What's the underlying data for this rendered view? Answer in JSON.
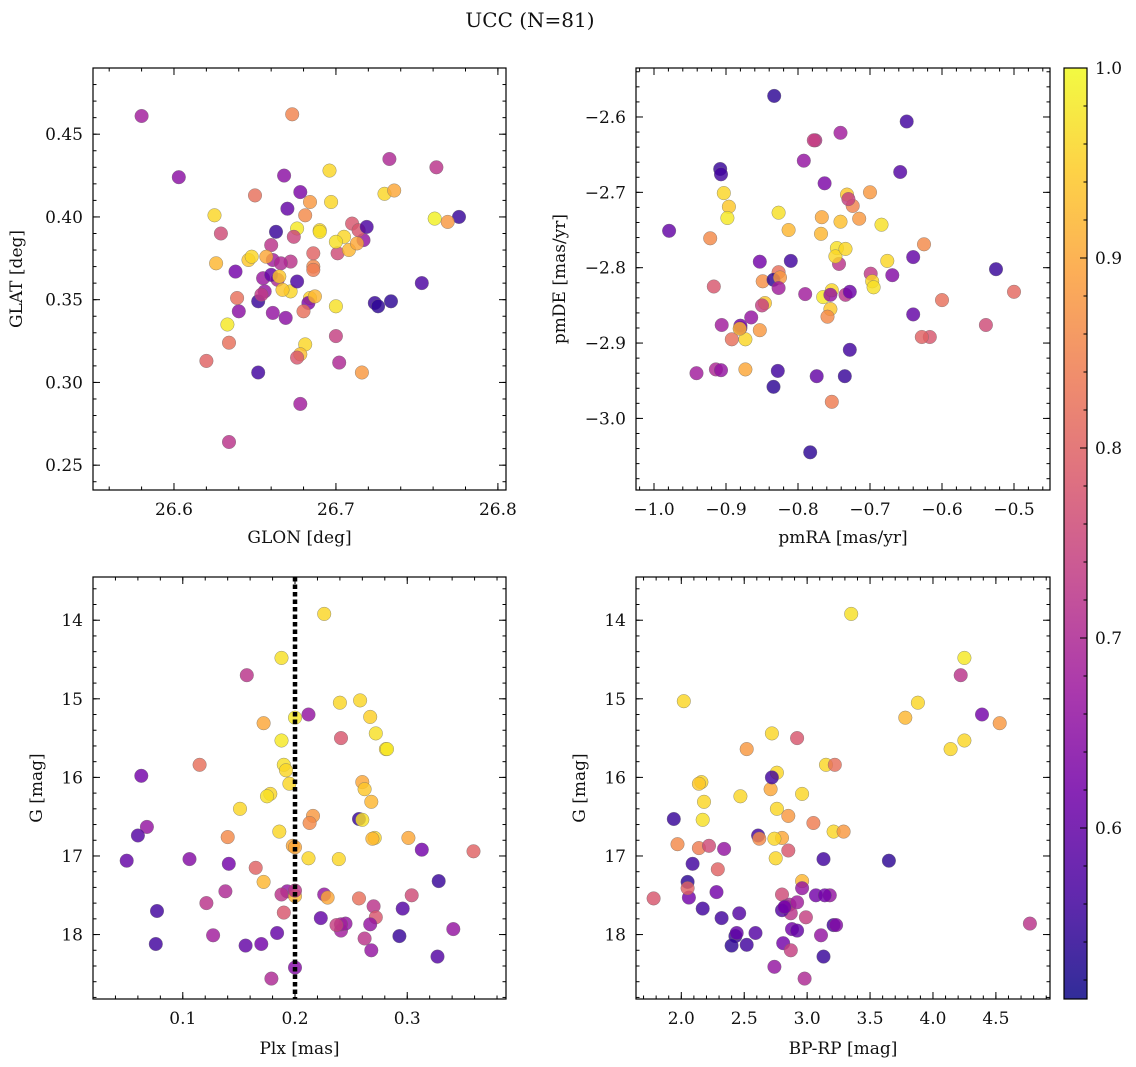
{
  "figure": {
    "title": "UCC (N=81)"
  },
  "colormap": {
    "name": "plasma",
    "range": [
      0.51,
      1.0
    ],
    "ticks": [
      0.6,
      0.7,
      0.8,
      0.9,
      1.0
    ],
    "tick_labels": [
      "0.6",
      "0.7",
      "0.8",
      "0.9",
      "1.0"
    ],
    "stops": [
      "#0d0887",
      "#46039f",
      "#7201a8",
      "#9c179e",
      "#bd3786",
      "#d8576b",
      "#ed7953",
      "#fb9f3a",
      "#fdca26",
      "#f0f921"
    ]
  },
  "chart_data": [
    {
      "type": "scatter",
      "id": "glon-glat",
      "xlabel": "GLON [deg]",
      "ylabel": "GLAT [deg]",
      "xlim": [
        26.55,
        26.805
      ],
      "ylim": [
        0.235,
        0.49
      ],
      "y_inverted": false,
      "xticks": [
        26.6,
        26.7,
        26.8
      ],
      "xtick_labels": [
        "26.6",
        "26.7",
        "26.8"
      ],
      "yticks": [
        0.25,
        0.3,
        0.35,
        0.4,
        0.45
      ],
      "ytick_labels": [
        "0.25",
        "0.30",
        "0.35",
        "0.40",
        "0.45"
      ],
      "x": [
        26.58,
        26.603,
        26.634,
        26.652,
        26.673,
        26.696,
        26.733,
        26.762,
        26.73,
        26.761,
        26.776,
        26.769,
        26.736,
        26.717,
        26.71,
        26.701,
        26.697,
        26.708,
        26.713,
        26.69,
        26.678,
        26.67,
        26.684,
        26.681,
        26.668,
        26.676,
        26.663,
        26.66,
        26.65,
        26.64,
        26.633,
        26.626,
        26.652,
        26.638,
        26.672,
        26.655,
        26.69,
        26.664,
        26.661,
        26.646,
        26.66,
        26.672,
        26.705,
        26.714,
        26.7,
        26.686,
        26.686,
        26.676,
        26.684,
        26.683,
        26.656,
        26.666,
        26.68,
        26.669,
        26.678,
        26.654,
        26.639,
        26.648,
        26.629,
        26.62,
        26.724,
        26.726,
        26.734,
        26.753,
        26.7,
        26.681,
        26.678,
        26.7,
        26.702,
        26.676,
        26.667,
        26.661,
        26.716,
        26.674,
        26.625,
        26.634,
        26.687,
        26.657,
        26.665,
        26.686,
        26.719
      ],
      "y": [
        0.461,
        0.424,
        0.264,
        0.306,
        0.462,
        0.428,
        0.435,
        0.43,
        0.414,
        0.399,
        0.4,
        0.397,
        0.416,
        0.386,
        0.396,
        0.378,
        0.409,
        0.38,
        0.384,
        0.392,
        0.415,
        0.405,
        0.409,
        0.401,
        0.425,
        0.393,
        0.391,
        0.383,
        0.413,
        0.343,
        0.335,
        0.372,
        0.349,
        0.367,
        0.373,
        0.363,
        0.391,
        0.362,
        0.374,
        0.374,
        0.365,
        0.355,
        0.388,
        0.392,
        0.385,
        0.37,
        0.368,
        0.361,
        0.351,
        0.348,
        0.355,
        0.372,
        0.343,
        0.339,
        0.287,
        0.353,
        0.351,
        0.376,
        0.39,
        0.313,
        0.348,
        0.346,
        0.349,
        0.36,
        0.346,
        0.323,
        0.317,
        0.328,
        0.312,
        0.315,
        0.356,
        0.342,
        0.306,
        0.388,
        0.401,
        0.324,
        0.352,
        0.376,
        0.364,
        0.378,
        0.394
      ],
      "color_value": [
        0.68,
        0.65,
        0.72,
        0.56,
        0.85,
        0.96,
        0.7,
        0.72,
        0.96,
        0.99,
        0.55,
        0.88,
        0.9,
        0.66,
        0.78,
        0.76,
        0.96,
        0.92,
        0.9,
        0.96,
        0.63,
        0.6,
        0.88,
        0.86,
        0.65,
        0.98,
        0.55,
        0.72,
        0.82,
        0.65,
        0.98,
        0.92,
        0.55,
        0.62,
        0.72,
        0.67,
        0.97,
        0.7,
        0.68,
        0.94,
        0.6,
        0.96,
        0.96,
        0.78,
        0.97,
        0.86,
        0.84,
        0.57,
        0.95,
        0.63,
        0.66,
        0.7,
        0.82,
        0.65,
        0.68,
        0.73,
        0.82,
        0.96,
        0.76,
        0.8,
        0.55,
        0.54,
        0.54,
        0.57,
        0.97,
        0.96,
        0.93,
        0.74,
        0.7,
        0.78,
        0.94,
        0.66,
        0.88,
        0.75,
        0.96,
        0.82,
        0.92,
        0.9,
        0.94,
        0.8,
        0.57
      ]
    },
    {
      "type": "scatter",
      "id": "pmra-pmde",
      "xlabel": "pmRA [mas/yr]",
      "ylabel": "pmDE [mas/yr]",
      "xlim": [
        -1.025,
        -0.45
      ],
      "ylim": [
        -3.095,
        -2.535
      ],
      "y_inverted": false,
      "xticks": [
        -1.0,
        -0.9,
        -0.8,
        -0.7,
        -0.6,
        -0.5
      ],
      "xtick_labels": [
        "−1.0",
        "−0.9",
        "−0.8",
        "−0.7",
        "−0.6",
        "−0.5"
      ],
      "yticks": [
        -3.0,
        -2.9,
        -2.8,
        -2.7,
        -2.6
      ],
      "ytick_labels": [
        "−3.0",
        "−2.9",
        "−2.8",
        "−2.7",
        "−2.6"
      ],
      "x": [
        -0.833,
        -0.649,
        -0.741,
        -0.776,
        -0.778,
        -0.792,
        -0.658,
        -0.763,
        -0.908,
        -0.907,
        -0.903,
        -0.896,
        -0.898,
        -0.979,
        -0.922,
        -0.917,
        -0.827,
        -0.813,
        -0.732,
        -0.724,
        -0.767,
        -0.73,
        -0.715,
        -0.741,
        -0.746,
        -0.743,
        -0.748,
        -0.81,
        -0.827,
        -0.853,
        -0.849,
        -0.834,
        -0.79,
        -0.765,
        -0.753,
        -0.755,
        -0.684,
        -0.699,
        -0.697,
        -0.625,
        -0.64,
        -0.64,
        -0.669,
        -0.676,
        -0.617,
        -0.6,
        -0.525,
        -0.5,
        -0.539,
        -0.628,
        -0.695,
        -0.734,
        -0.755,
        -0.759,
        -0.774,
        -0.906,
        -0.892,
        -0.873,
        -0.853,
        -0.846,
        -0.825,
        -0.827,
        -0.873,
        -0.88,
        -0.865,
        -0.88,
        -0.914,
        -0.907,
        -0.941,
        -0.881,
        -0.828,
        -0.834,
        -0.753,
        -0.735,
        -0.728,
        -0.728,
        -0.768,
        -0.783,
        -0.85,
        -0.734,
        -0.7
      ],
      "y": [
        -2.572,
        -2.606,
        -2.621,
        -2.631,
        -2.631,
        -2.658,
        -2.673,
        -2.688,
        -2.669,
        -2.676,
        -2.701,
        -2.719,
        -2.734,
        -2.751,
        -2.761,
        -2.825,
        -2.727,
        -2.75,
        -2.703,
        -2.718,
        -2.733,
        -2.709,
        -2.735,
        -2.739,
        -2.774,
        -2.795,
        -2.785,
        -2.791,
        -2.806,
        -2.792,
        -2.818,
        -2.816,
        -2.835,
        -2.839,
        -2.83,
        -2.855,
        -2.743,
        -2.808,
        -2.818,
        -2.769,
        -2.786,
        -2.862,
        -2.81,
        -2.791,
        -2.892,
        -2.843,
        -2.802,
        -2.832,
        -2.876,
        -2.892,
        -2.826,
        -2.836,
        -2.836,
        -2.865,
        -2.944,
        -2.876,
        -2.895,
        -2.935,
        -2.883,
        -2.847,
        -2.813,
        -2.827,
        -2.895,
        -2.88,
        -2.866,
        -2.877,
        -2.935,
        -2.936,
        -2.94,
        -2.881,
        -2.937,
        -2.958,
        -2.978,
        -2.944,
        -2.909,
        -2.832,
        -2.755,
        -3.045,
        -2.85,
        -2.775,
        -2.7
      ],
      "color_value": [
        0.54,
        0.56,
        0.68,
        0.72,
        0.74,
        0.66,
        0.58,
        0.63,
        0.55,
        0.56,
        0.96,
        0.94,
        0.98,
        0.6,
        0.86,
        0.78,
        0.97,
        0.92,
        0.94,
        0.85,
        0.9,
        0.74,
        0.88,
        0.93,
        0.97,
        0.72,
        0.96,
        0.56,
        0.82,
        0.62,
        0.87,
        0.54,
        0.68,
        0.98,
        0.96,
        0.94,
        0.97,
        0.73,
        0.96,
        0.86,
        0.6,
        0.6,
        0.64,
        0.96,
        0.78,
        0.82,
        0.55,
        0.81,
        0.76,
        0.8,
        0.97,
        0.72,
        0.66,
        0.86,
        0.6,
        0.68,
        0.82,
        0.9,
        0.88,
        0.94,
        0.88,
        0.68,
        0.96,
        0.64,
        0.66,
        0.62,
        0.7,
        0.66,
        0.68,
        0.92,
        0.56,
        0.54,
        0.84,
        0.55,
        0.56,
        0.61,
        0.92,
        0.54,
        0.74,
        0.96,
        0.88
      ]
    },
    {
      "type": "scatter",
      "id": "plx-g",
      "xlabel": "Plx [mas]",
      "ylabel": "G [mag]",
      "xlim": [
        0.02,
        0.388
      ],
      "ylim": [
        13.45,
        18.82
      ],
      "y_inverted": true,
      "xticks": [
        0.1,
        0.2,
        0.3
      ],
      "xtick_labels": [
        "0.1",
        "0.2",
        "0.3"
      ],
      "yticks": [
        14,
        15,
        16,
        17,
        18
      ],
      "ytick_labels": [
        "14",
        "15",
        "16",
        "17",
        "18"
      ],
      "vline": {
        "x": 0.2,
        "style": "dotted",
        "color": "#000000"
      },
      "x": [
        0.226,
        0.188,
        0.157,
        0.2,
        0.212,
        0.24,
        0.258,
        0.267,
        0.272,
        0.281,
        0.282,
        0.241,
        0.172,
        0.188,
        0.115,
        0.19,
        0.192,
        0.063,
        0.068,
        0.26,
        0.262,
        0.268,
        0.257,
        0.26,
        0.216,
        0.213,
        0.195,
        0.178,
        0.175,
        0.151,
        0.14,
        0.186,
        0.198,
        0.2,
        0.212,
        0.271,
        0.269,
        0.301,
        0.313,
        0.359,
        0.05,
        0.06,
        0.106,
        0.141,
        0.172,
        0.193,
        0.2,
        0.239,
        0.226,
        0.229,
        0.257,
        0.241,
        0.245,
        0.27,
        0.272,
        0.304,
        0.328,
        0.296,
        0.341,
        0.327,
        0.293,
        0.268,
        0.262,
        0.267,
        0.241,
        0.237,
        0.223,
        0.2,
        0.188,
        0.19,
        0.165,
        0.184,
        0.17,
        0.179,
        0.156,
        0.138,
        0.127,
        0.121,
        0.077,
        0.076,
        0.2
      ],
      "y": [
        13.92,
        14.48,
        14.7,
        15.24,
        15.2,
        15.05,
        15.02,
        15.23,
        15.44,
        15.64,
        15.64,
        15.5,
        15.31,
        15.53,
        15.84,
        15.84,
        15.91,
        15.98,
        16.63,
        16.06,
        16.15,
        16.31,
        16.53,
        16.54,
        16.49,
        16.58,
        16.08,
        16.21,
        16.24,
        16.4,
        16.76,
        16.69,
        16.87,
        16.89,
        17.03,
        16.77,
        16.78,
        16.77,
        16.92,
        16.94,
        17.06,
        16.74,
        17.04,
        17.1,
        17.33,
        17.45,
        17.51,
        17.04,
        17.49,
        17.53,
        17.54,
        17.95,
        17.86,
        17.64,
        17.78,
        17.5,
        17.32,
        17.67,
        17.93,
        18.28,
        18.02,
        18.2,
        18.05,
        17.87,
        17.87,
        17.88,
        17.79,
        17.44,
        17.49,
        17.72,
        17.15,
        17.98,
        18.12,
        18.56,
        18.14,
        17.45,
        18.01,
        17.6,
        17.7,
        18.12,
        18.42
      ],
      "color_value": [
        0.96,
        0.97,
        0.72,
        0.98,
        0.66,
        0.96,
        0.96,
        0.95,
        0.97,
        0.96,
        0.98,
        0.78,
        0.9,
        0.98,
        0.82,
        0.97,
        0.96,
        0.62,
        0.66,
        0.9,
        0.94,
        0.92,
        0.55,
        0.97,
        0.88,
        0.86,
        0.96,
        0.96,
        0.97,
        0.96,
        0.86,
        0.96,
        0.9,
        0.9,
        0.96,
        0.96,
        0.92,
        0.9,
        0.62,
        0.8,
        0.6,
        0.58,
        0.64,
        0.62,
        0.92,
        0.66,
        0.92,
        0.96,
        0.66,
        0.9,
        0.82,
        0.68,
        0.66,
        0.72,
        0.78,
        0.76,
        0.55,
        0.58,
        0.66,
        0.58,
        0.55,
        0.66,
        0.72,
        0.66,
        0.68,
        0.74,
        0.6,
        0.72,
        0.72,
        0.78,
        0.8,
        0.6,
        0.62,
        0.7,
        0.6,
        0.7,
        0.68,
        0.72,
        0.56,
        0.56,
        0.64
      ]
    },
    {
      "type": "scatter",
      "id": "bprp-g",
      "xlabel": "BP-RP [mag]",
      "ylabel": "G [mag]",
      "xlim": [
        1.64,
        4.93
      ],
      "ylim": [
        13.45,
        18.82
      ],
      "y_inverted": true,
      "xticks": [
        2.0,
        2.5,
        3.0,
        3.5,
        4.0,
        4.5
      ],
      "xtick_labels": [
        "2.0",
        "2.5",
        "3.0",
        "3.5",
        "4.0",
        "4.5"
      ],
      "yticks": [
        14,
        15,
        16,
        17,
        18
      ],
      "ytick_labels": [
        "14",
        "15",
        "16",
        "17",
        "18"
      ],
      "x": [
        3.35,
        4.25,
        4.22,
        4.39,
        4.53,
        4.25,
        4.14,
        3.78,
        3.88,
        2.02,
        2.52,
        2.72,
        2.92,
        2.76,
        3.15,
        3.22,
        2.16,
        2.14,
        2.18,
        2.17,
        2.47,
        2.71,
        2.76,
        2.85,
        2.61,
        2.8,
        2.74,
        2.96,
        3.05,
        3.21,
        3.29,
        3.65,
        1.94,
        2.05,
        1.97,
        2.14,
        2.22,
        2.62,
        2.85,
        2.96,
        2.75,
        3.13,
        2.99,
        3.21,
        1.78,
        2.06,
        2.05,
        2.09,
        2.34,
        2.17,
        2.28,
        2.46,
        2.8,
        2.86,
        2.83,
        2.87,
        2.96,
        3.18,
        3.07,
        2.43,
        2.4,
        2.44,
        2.52,
        2.59,
        2.74,
        2.81,
        2.88,
        2.8,
        2.87,
        3.13,
        2.98,
        2.72,
        2.92,
        3.11,
        3.14,
        3.23,
        4.77,
        2.82,
        2.29,
        2.32,
        2.92
      ],
      "y": [
        13.92,
        14.48,
        14.7,
        15.2,
        15.31,
        15.53,
        15.64,
        15.24,
        15.05,
        15.03,
        15.64,
        15.44,
        15.5,
        15.94,
        15.84,
        15.84,
        16.06,
        16.08,
        16.31,
        16.54,
        16.24,
        16.15,
        16.4,
        16.49,
        16.74,
        16.77,
        16.78,
        16.21,
        16.58,
        16.69,
        16.69,
        17.06,
        16.53,
        17.33,
        16.85,
        16.9,
        16.87,
        16.78,
        16.93,
        17.32,
        17.03,
        17.04,
        17.78,
        17.88,
        17.54,
        17.53,
        17.41,
        17.1,
        16.91,
        17.67,
        17.46,
        17.73,
        17.49,
        17.62,
        17.64,
        17.73,
        17.41,
        17.5,
        17.5,
        18.02,
        18.14,
        17.98,
        18.13,
        17.98,
        18.41,
        18.11,
        17.93,
        17.69,
        18.2,
        18.28,
        18.56,
        16.0,
        17.95,
        18.01,
        17.5,
        17.88,
        17.86,
        17.65,
        17.17,
        17.79,
        17.59
      ],
      "color_value": [
        0.97,
        0.98,
        0.72,
        0.62,
        0.88,
        0.96,
        0.96,
        0.92,
        0.96,
        0.96,
        0.88,
        0.96,
        0.78,
        0.96,
        0.96,
        0.82,
        0.96,
        0.94,
        0.96,
        0.97,
        0.96,
        0.9,
        0.96,
        0.88,
        0.56,
        0.9,
        0.96,
        0.96,
        0.84,
        0.96,
        0.88,
        0.54,
        0.55,
        0.54,
        0.86,
        0.84,
        0.76,
        0.86,
        0.78,
        0.92,
        0.96,
        0.56,
        0.74,
        0.56,
        0.78,
        0.62,
        0.8,
        0.56,
        0.66,
        0.56,
        0.62,
        0.58,
        0.76,
        0.7,
        0.68,
        0.72,
        0.66,
        0.66,
        0.62,
        0.55,
        0.54,
        0.6,
        0.56,
        0.58,
        0.66,
        0.62,
        0.62,
        0.58,
        0.74,
        0.55,
        0.7,
        0.56,
        0.6,
        0.66,
        0.62,
        0.64,
        0.72,
        0.62,
        0.8,
        0.56,
        0.68
      ]
    }
  ]
}
